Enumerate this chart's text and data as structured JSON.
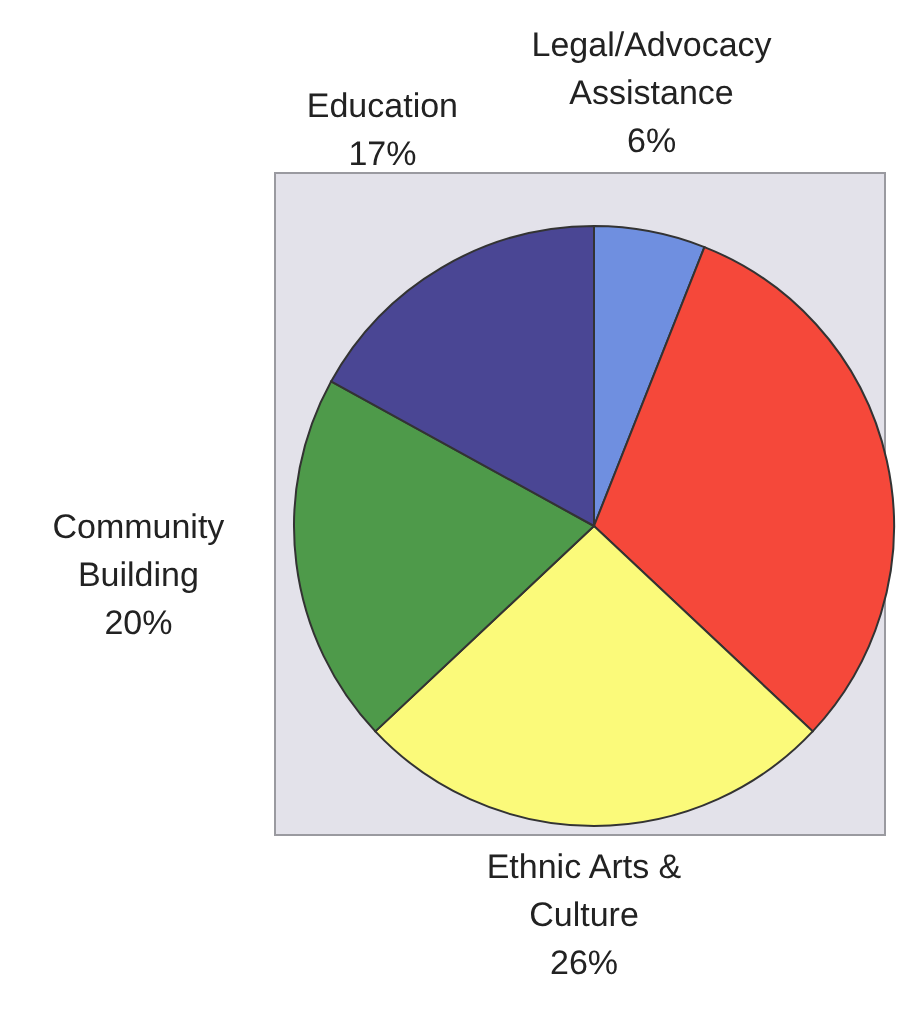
{
  "chart_data": {
    "type": "pie",
    "categories": [
      "Legal/Advocacy Assistance",
      null,
      "Ethnic Arts & Culture",
      "Community Building",
      "Education"
    ],
    "values": [
      6,
      31,
      26,
      20,
      17
    ],
    "value_labels": [
      "6%",
      null,
      "26%",
      "20%",
      "17%"
    ],
    "colors": [
      "#6f8fe0",
      "#f5483a",
      "#fbfa7a",
      "#4e9a4a",
      "#4a4694"
    ],
    "legend": false
  }
}
